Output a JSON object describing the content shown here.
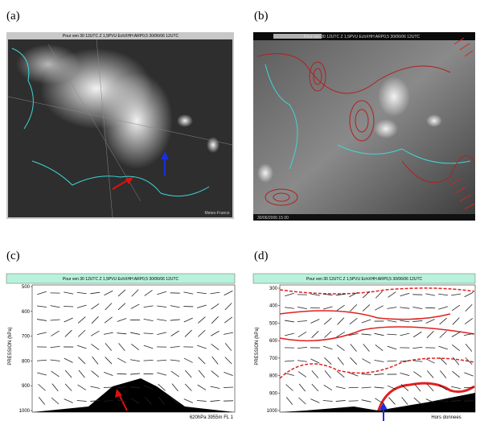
{
  "panels": [
    {
      "label": "(a)",
      "header": "Pour ven 30 12UTC Z 1,5PVU EchXHH ARP0,5 30/06/06 12UTC",
      "footer": "Meteo-France"
    },
    {
      "label": "(b)",
      "header": "Pour ven 30 12UTC Z 1,5PVU EchXHH ARP0,5 30/06/06 12UTC",
      "footer": "30/06/2006 15 00"
    },
    {
      "label": "(c)",
      "header": "Pour ven 30 12UTC Z 1,5PVU EchXHH ARP0,5 30/06/06 12UTC",
      "axis_title": "PRESSION (hPa)",
      "ticks": [
        500,
        600,
        700,
        800,
        900,
        1000
      ],
      "footer": "620hPa 3955m FL 1"
    },
    {
      "label": "(d)",
      "header": "Pour ven 30 12UTC Z 1,5PVU EchXHH ARP0,5 30/06/06 12UTC",
      "axis_title": "PRESSION (hPa)",
      "ticks": [
        300,
        400,
        500,
        600,
        700,
        800,
        900,
        1000
      ],
      "footer": "Hors donnees"
    }
  ]
}
